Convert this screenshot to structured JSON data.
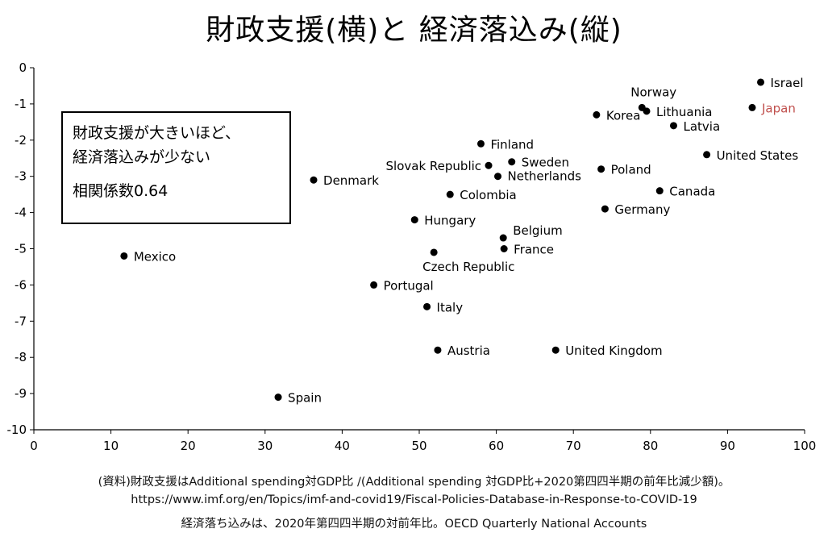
{
  "title": "財政支援(横)と 経済落込み(縦)",
  "note": {
    "line1": "財政支援が大きいほど、",
    "line2": "経済落込みが少ない",
    "line3": "相関係数0.64"
  },
  "source": {
    "line1": "(資料)財政支援はAdditional spending対GDP比 /(Additional spending 対GDP比+2020第四四半期の前年比減少額)。",
    "line2": "https://www.imf.org/en/Topics/imf-and-covid19/Fiscal-Policies-Database-in-Response-to-COVID-19",
    "line3": "経済落ち込みは、2020年第四四半期の対前年比。OECD Quarterly National Accounts"
  },
  "colors": {
    "point": "#000000",
    "highlight": "#c0504d",
    "axis": "#000000"
  },
  "chart_data": {
    "type": "scatter",
    "title": "財政支援(横)と 経済落込み(縦)",
    "xlabel": "",
    "ylabel": "",
    "xlim": [
      0,
      100
    ],
    "ylim": [
      -10,
      0
    ],
    "xticks": [
      0,
      10,
      20,
      30,
      40,
      50,
      60,
      70,
      80,
      90,
      100
    ],
    "yticks": [
      0,
      -1,
      -2,
      -3,
      -4,
      -5,
      -6,
      -7,
      -8,
      -9,
      -10
    ],
    "grid": false,
    "points": [
      {
        "label": "Israel",
        "x": 94.3,
        "y": -0.4
      },
      {
        "label": "Japan",
        "x": 93.2,
        "y": -1.1,
        "highlight": true
      },
      {
        "label": "Norway",
        "x": 78.9,
        "y": -1.1
      },
      {
        "label": "Lithuania",
        "x": 79.5,
        "y": -1.2
      },
      {
        "label": "Korea",
        "x": 73.0,
        "y": -1.3
      },
      {
        "label": "Latvia",
        "x": 83.0,
        "y": -1.6
      },
      {
        "label": "United States",
        "x": 87.3,
        "y": -2.4
      },
      {
        "label": "Finland",
        "x": 58.0,
        "y": -2.1
      },
      {
        "label": "Sweden",
        "x": 62.0,
        "y": -2.6
      },
      {
        "label": "Slovak Republic",
        "x": 59.0,
        "y": -2.7
      },
      {
        "label": "Netherlands",
        "x": 60.2,
        "y": -3.0
      },
      {
        "label": "Poland",
        "x": 73.6,
        "y": -2.8
      },
      {
        "label": "Denmark",
        "x": 36.3,
        "y": -3.1
      },
      {
        "label": "Colombia",
        "x": 54.0,
        "y": -3.5
      },
      {
        "label": "Canada",
        "x": 81.2,
        "y": -3.4
      },
      {
        "label": "Germany",
        "x": 74.1,
        "y": -3.9
      },
      {
        "label": "Hungary",
        "x": 49.4,
        "y": -4.2
      },
      {
        "label": "Belgium",
        "x": 60.9,
        "y": -4.7
      },
      {
        "label": "France",
        "x": 61.0,
        "y": -5.0
      },
      {
        "label": "Czech Republic",
        "x": 51.9,
        "y": -5.1
      },
      {
        "label": "Mexico",
        "x": 11.7,
        "y": -5.2
      },
      {
        "label": "Portugal",
        "x": 44.1,
        "y": -6.0
      },
      {
        "label": "Italy",
        "x": 51.0,
        "y": -6.6
      },
      {
        "label": "Austria",
        "x": 52.4,
        "y": -7.8
      },
      {
        "label": "United Kingdom",
        "x": 67.7,
        "y": -7.8
      },
      {
        "label": "Spain",
        "x": 31.7,
        "y": -9.1
      }
    ]
  }
}
